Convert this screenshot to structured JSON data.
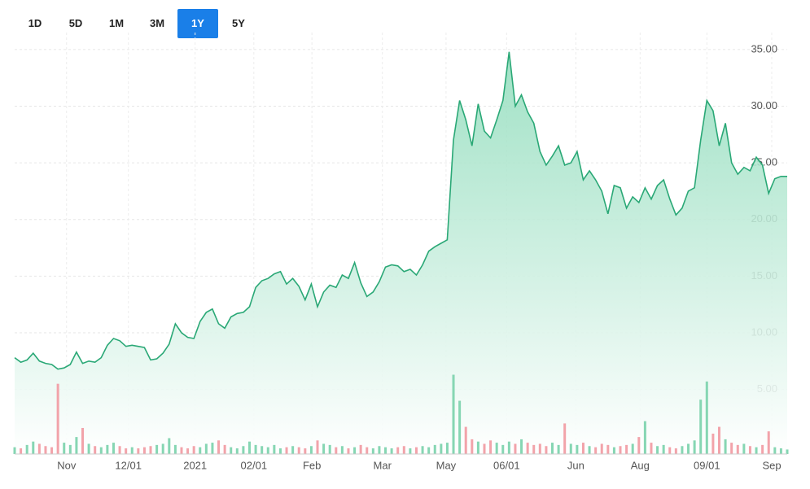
{
  "controls": {
    "range_buttons": [
      "1D",
      "5D",
      "1M",
      "3M",
      "1Y",
      "5Y"
    ],
    "selected": 4
  },
  "chart_data": {
    "type": "line",
    "series": [
      {
        "color": "#2aa876",
        "values": [
          7.8,
          7.4,
          7.6,
          8.2,
          7.5,
          7.3,
          7.2,
          6.8,
          6.9,
          7.2,
          8.3,
          7.3,
          7.5,
          7.4,
          7.8,
          8.9,
          9.5,
          9.3,
          8.8,
          8.9,
          8.8,
          8.7,
          7.6,
          7.7,
          8.2,
          9.0,
          10.8,
          10.0,
          9.6,
          9.5,
          11.0,
          11.8,
          12.1,
          10.8,
          10.4,
          11.4,
          11.7,
          11.8,
          12.3,
          14.0,
          14.6,
          14.8,
          15.2,
          15.4,
          14.3,
          14.8,
          14.1,
          12.9,
          14.3,
          12.3,
          13.6,
          14.2,
          14.0,
          15.1,
          14.8,
          16.2,
          14.4,
          13.2,
          13.6,
          14.5,
          15.8,
          16.0,
          15.9,
          15.4,
          15.6,
          15.1,
          16.0,
          17.2,
          17.6,
          17.9,
          18.2,
          27.0,
          30.5,
          28.8,
          26.5,
          30.2,
          27.8,
          27.2,
          28.8,
          30.5,
          34.8,
          30.0,
          31.0,
          29.5,
          28.5,
          26.0,
          24.8,
          25.6,
          26.5,
          24.8,
          25.0,
          26.0,
          23.5,
          24.3,
          23.5,
          22.5,
          20.5,
          23.0,
          22.8,
          21.0,
          22.0,
          21.5,
          22.8,
          21.8,
          23.0,
          23.5,
          21.8,
          20.4,
          21.0,
          22.5,
          22.8,
          27.0,
          30.5,
          29.6,
          26.5,
          28.5,
          25.0,
          24.0,
          24.6,
          24.3,
          25.5,
          24.8,
          22.3,
          23.6,
          23.8,
          23.8
        ]
      }
    ],
    "volume": {
      "up_color": "#86d6b3",
      "down_color": "#f2a3aa",
      "values": [
        0.6,
        0.5,
        0.8,
        1.1,
        0.9,
        0.7,
        0.6,
        6.2,
        1.0,
        0.8,
        1.5,
        2.3,
        0.9,
        0.7,
        0.6,
        0.8,
        1.0,
        0.7,
        0.5,
        0.6,
        0.5,
        0.6,
        0.7,
        0.8,
        0.9,
        1.4,
        0.8,
        0.6,
        0.5,
        0.7,
        0.6,
        0.9,
        1.0,
        1.2,
        0.8,
        0.6,
        0.5,
        0.7,
        1.1,
        0.8,
        0.7,
        0.6,
        0.8,
        0.5,
        0.6,
        0.7,
        0.6,
        0.5,
        0.7,
        1.2,
        0.9,
        0.8,
        0.6,
        0.7,
        0.5,
        0.6,
        0.8,
        0.6,
        0.5,
        0.7,
        0.6,
        0.5,
        0.6,
        0.7,
        0.5,
        0.6,
        0.7,
        0.6,
        0.8,
        0.9,
        1.0,
        7.0,
        4.7,
        2.4,
        1.3,
        1.1,
        0.9,
        1.2,
        1.0,
        0.8,
        1.1,
        0.9,
        1.3,
        1.0,
        0.8,
        0.9,
        0.7,
        1.0,
        0.8,
        2.7,
        0.9,
        0.8,
        1.0,
        0.7,
        0.6,
        0.9,
        0.8,
        0.6,
        0.7,
        0.8,
        0.9,
        1.5,
        2.9,
        1.0,
        0.7,
        0.8,
        0.6,
        0.5,
        0.7,
        0.9,
        1.2,
        4.8,
        6.4,
        1.8,
        2.4,
        1.3,
        1.0,
        0.8,
        0.9,
        0.7,
        0.6,
        0.8,
        2.0,
        0.6,
        0.5,
        0.4
      ]
    },
    "xlim": [
      0,
      125
    ],
    "ylim": [
      -0.7,
      36.5
    ],
    "xticks": [
      {
        "value": 8.4,
        "label": "Nov"
      },
      {
        "value": 18.4,
        "label": "12/01"
      },
      {
        "value": 29.2,
        "label": "2021"
      },
      {
        "value": 38.7,
        "label": "02/01"
      },
      {
        "value": 48.1,
        "label": "Feb"
      },
      {
        "value": 59.5,
        "label": "Mar"
      },
      {
        "value": 69.8,
        "label": "May"
      },
      {
        "value": 79.6,
        "label": "06/01"
      },
      {
        "value": 90.8,
        "label": "Jun"
      },
      {
        "value": 101.2,
        "label": "Aug"
      },
      {
        "value": 112.0,
        "label": "09/01"
      },
      {
        "value": 122.5,
        "label": "Sep"
      }
    ],
    "yticks": [
      {
        "value": 5,
        "label": "5.00"
      },
      {
        "value": 10,
        "label": "10.00"
      },
      {
        "value": 15,
        "label": "15.00"
      },
      {
        "value": 20,
        "label": "20.00"
      },
      {
        "value": 25,
        "label": "25.00"
      },
      {
        "value": 30,
        "label": "30.00"
      },
      {
        "value": 35,
        "label": "35.00"
      }
    ],
    "grid": true
  }
}
